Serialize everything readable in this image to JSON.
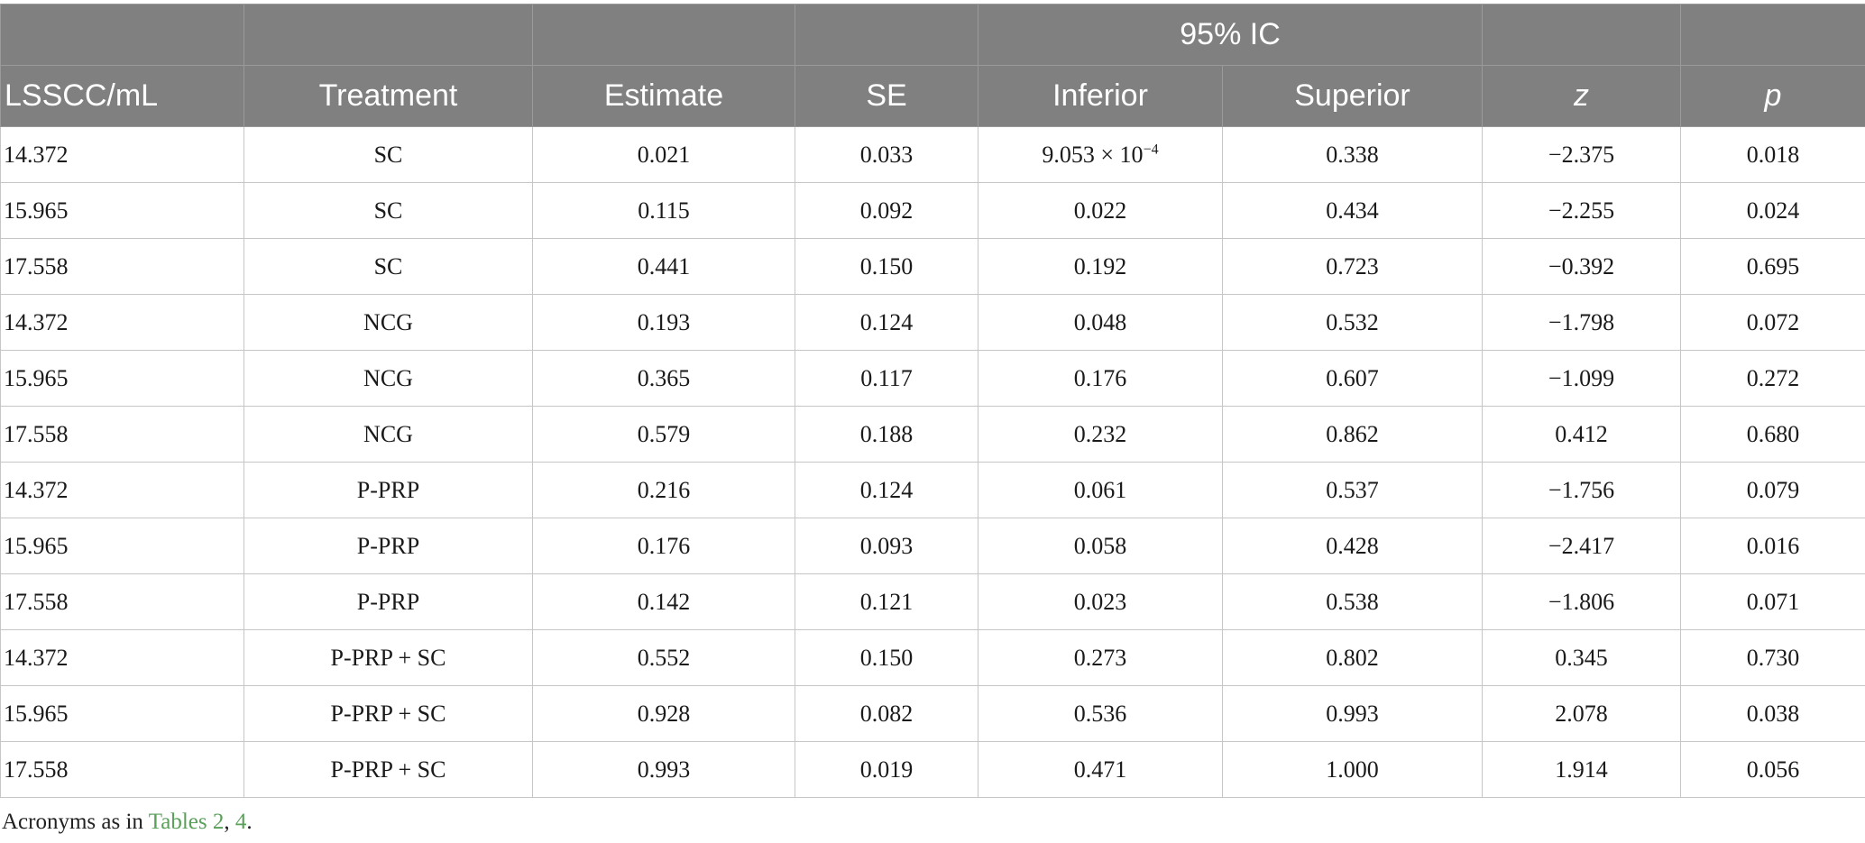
{
  "header": {
    "group_label": "95% IC",
    "columns": [
      "LSSCC/mL",
      "Treatment",
      "Estimate",
      "SE",
      "Inferior",
      "Superior",
      "z",
      "p"
    ]
  },
  "rows": [
    {
      "lsscc": "14.372",
      "treatment": "SC",
      "estimate": "0.021",
      "se": "0.033",
      "inferior": "9.053 × 10",
      "inferior_exp": "−4",
      "superior": "0.338",
      "z": "−2.375",
      "p": "0.018"
    },
    {
      "lsscc": "15.965",
      "treatment": "SC",
      "estimate": "0.115",
      "se": "0.092",
      "inferior": "0.022",
      "superior": "0.434",
      "z": "−2.255",
      "p": "0.024"
    },
    {
      "lsscc": "17.558",
      "treatment": "SC",
      "estimate": "0.441",
      "se": "0.150",
      "inferior": "0.192",
      "superior": "0.723",
      "z": "−0.392",
      "p": "0.695"
    },
    {
      "lsscc": "14.372",
      "treatment": "NCG",
      "estimate": "0.193",
      "se": "0.124",
      "inferior": "0.048",
      "superior": "0.532",
      "z": "−1.798",
      "p": "0.072"
    },
    {
      "lsscc": "15.965",
      "treatment": "NCG",
      "estimate": "0.365",
      "se": "0.117",
      "inferior": "0.176",
      "superior": "0.607",
      "z": "−1.099",
      "p": "0.272"
    },
    {
      "lsscc": "17.558",
      "treatment": "NCG",
      "estimate": "0.579",
      "se": "0.188",
      "inferior": "0.232",
      "superior": "0.862",
      "z": "0.412",
      "p": "0.680"
    },
    {
      "lsscc": "14.372",
      "treatment": "P-PRP",
      "estimate": "0.216",
      "se": "0.124",
      "inferior": "0.061",
      "superior": "0.537",
      "z": "−1.756",
      "p": "0.079"
    },
    {
      "lsscc": "15.965",
      "treatment": "P-PRP",
      "estimate": "0.176",
      "se": "0.093",
      "inferior": "0.058",
      "superior": "0.428",
      "z": "−2.417",
      "p": "0.016"
    },
    {
      "lsscc": "17.558",
      "treatment": "P-PRP",
      "estimate": "0.142",
      "se": "0.121",
      "inferior": "0.023",
      "superior": "0.538",
      "z": "−1.806",
      "p": "0.071"
    },
    {
      "lsscc": "14.372",
      "treatment": "P-PRP + SC",
      "estimate": "0.552",
      "se": "0.150",
      "inferior": "0.273",
      "superior": "0.802",
      "z": "0.345",
      "p": "0.730"
    },
    {
      "lsscc": "15.965",
      "treatment": "P-PRP + SC",
      "estimate": "0.928",
      "se": "0.082",
      "inferior": "0.536",
      "superior": "0.993",
      "z": "2.078",
      "p": "0.038"
    },
    {
      "lsscc": "17.558",
      "treatment": "P-PRP + SC",
      "estimate": "0.993",
      "se": "0.019",
      "inferior": "0.471",
      "superior": "1.000",
      "z": "1.914",
      "p": "0.056"
    }
  ],
  "footnote": {
    "prefix": "Acronyms as in ",
    "link1": "Tables 2",
    "sep": ", ",
    "link2": "4",
    "suffix": ".",
    "link_color": "#5aa05a"
  },
  "colors": {
    "header_bg": "#808080",
    "header_text": "#ffffff",
    "grid": "#c6c6c6"
  }
}
